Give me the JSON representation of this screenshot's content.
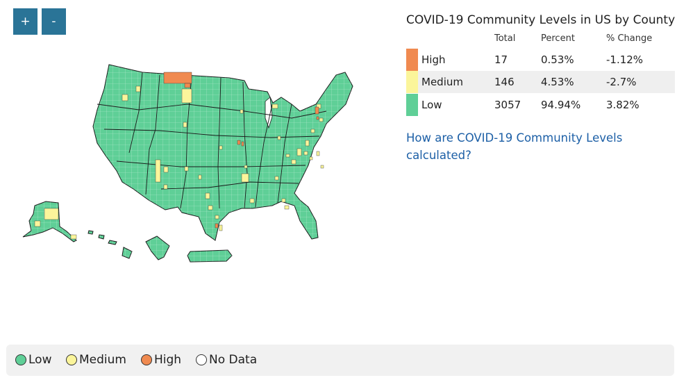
{
  "controls": {
    "zoom_in_label": "+",
    "zoom_out_label": "-"
  },
  "stats": {
    "title": "COVID-19 Community Levels in US by County",
    "columns": [
      "Total",
      "Percent",
      "% Change"
    ],
    "rows": [
      {
        "label": "High",
        "total": "17",
        "percent": "0.53%",
        "change": "-1.12%",
        "color": "#f08a50"
      },
      {
        "label": "Medium",
        "total": "146",
        "percent": "4.53%",
        "change": "-2.7%",
        "color": "#fbf59b"
      },
      {
        "label": "Low",
        "total": "3057",
        "percent": "94.94%",
        "change": "3.82%",
        "color": "#5fcf97"
      }
    ],
    "link_text": "How are COVID-19 Community Levels calculated?"
  },
  "legend": {
    "items": [
      {
        "label": "Low",
        "color": "#5fcf97"
      },
      {
        "label": "Medium",
        "color": "#fbf59b"
      },
      {
        "label": "High",
        "color": "#f08a50"
      },
      {
        "label": "No Data",
        "color": "#ffffff"
      }
    ]
  },
  "map": {
    "low_color": "#5fcf97",
    "medium_color": "#fbf59b",
    "high_color": "#f08a50",
    "border_color": "#1a1a1a"
  }
}
